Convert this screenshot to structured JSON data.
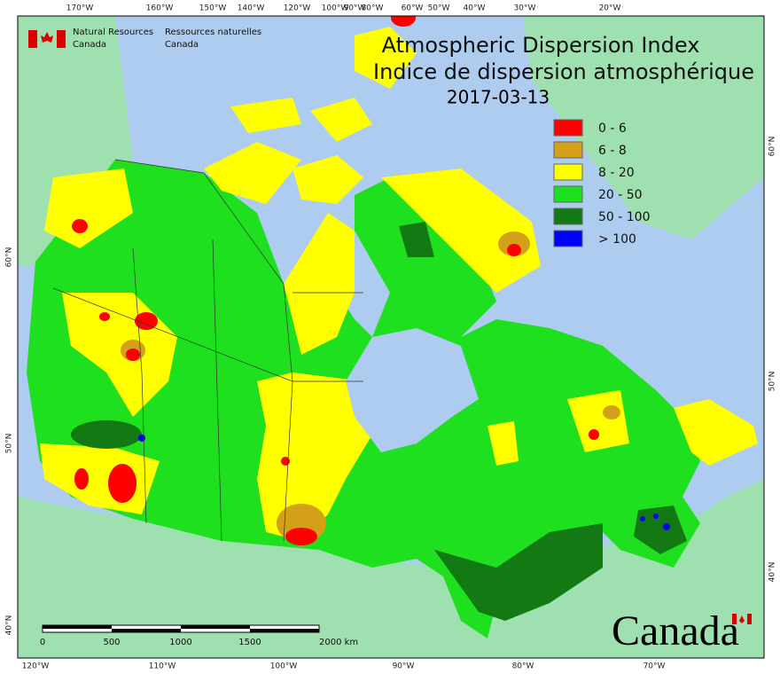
{
  "header": {
    "agency_en": [
      "Natural Resources",
      "Canada"
    ],
    "agency_fr": [
      "Ressources naturelles",
      "Canada"
    ]
  },
  "title": {
    "en": "Atmospheric Dispersion Index",
    "fr": "Indice de dispersion atmosphérique",
    "date": "2017-03-13"
  },
  "legend": [
    {
      "label": "0 - 6",
      "color": "#ff0000"
    },
    {
      "label": "6 - 8",
      "color": "#d4a017"
    },
    {
      "label": "8 - 20",
      "color": "#ffff00"
    },
    {
      "label": "20 - 50",
      "color": "#1ee01e"
    },
    {
      "label": "50 - 100",
      "color": "#137a13"
    },
    {
      "label": "> 100",
      "color": "#0000ff"
    }
  ],
  "graticule": {
    "top": [
      "170°W",
      "160°W",
      "150°W",
      "140°W",
      "120°W",
      "100°W",
      "90°W",
      "80°W",
      "60°W",
      "50°W",
      "40°W",
      "30°W",
      "20°W"
    ],
    "bottom": [
      "120°W",
      "110°W",
      "100°W",
      "90°W",
      "80°W",
      "70°W"
    ],
    "left": [
      "60°N",
      "50°N",
      "40°N"
    ],
    "right": [
      "60°N",
      "50°N",
      "40°N"
    ]
  },
  "scale_bar": {
    "labels": [
      "0",
      "500",
      "1000",
      "1500",
      "2000 km"
    ]
  },
  "wordmark": "Canada"
}
